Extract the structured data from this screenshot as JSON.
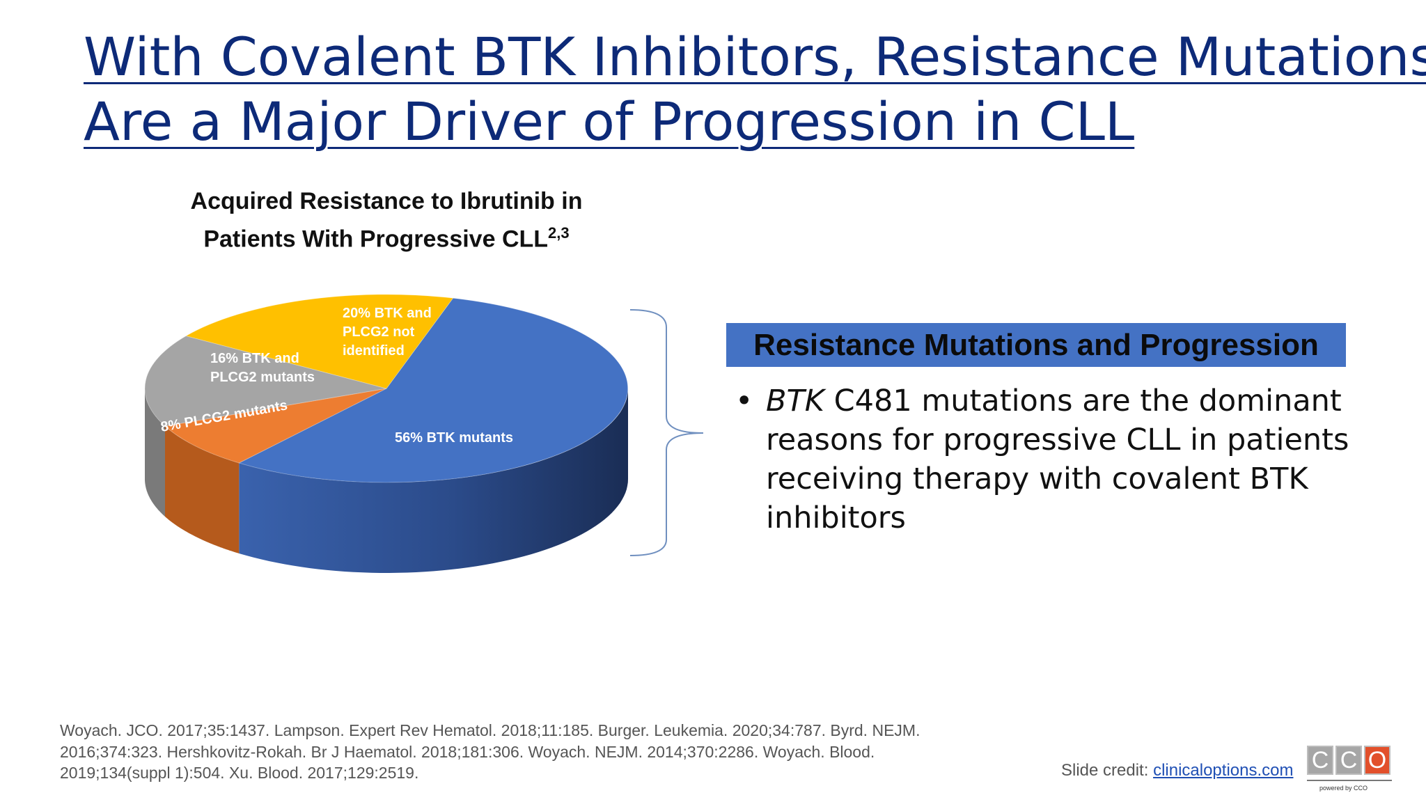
{
  "slide": {
    "title_line1": "With Covalent BTK Inhibitors, Resistance Mutations",
    "title_line2": "Are a Major Driver of Progression in CLL"
  },
  "chart_data": {
    "type": "pie",
    "title_line1": "Acquired Resistance to Ibrutinib in",
    "title_line2": "Patients With Progressive CLL",
    "title_superscript": "2,3",
    "slices": [
      {
        "label": "56% BTK mutants",
        "value": 56,
        "color": "#4472c4",
        "side_color": "#2d4f91"
      },
      {
        "label": "8% PLCG2 mutants",
        "value": 8,
        "color": "#ed7d31",
        "side_color": "#b55a1c"
      },
      {
        "label_lines": [
          "16% BTK and",
          "PLCG2 mutants"
        ],
        "value": 16,
        "color": "#a5a5a5",
        "side_color": "#7a7a7a"
      },
      {
        "label_lines": [
          "20% BTK and",
          "PLCG2 not",
          "identified"
        ],
        "value": 20,
        "color": "#ffc000",
        "side_color": "#c79500"
      }
    ]
  },
  "panel": {
    "heading": "Resistance Mutations and Progression",
    "bullet_italic": "BTK",
    "bullet_text": " C481 mutations are the dominant reasons for progressive CLL in patients receiving therapy with covalent BTK inhibitors",
    "bullet_symbol": "•"
  },
  "footer": {
    "references": "Woyach. JCO. 2017;35:1437. Lampson. Expert Rev Hematol. 2018;11:185. Burger. Leukemia. 2020;34:787. Byrd. NEJM. 2016;374:323. Hershkovitz-Rokah. Br J Haematol. 2018;181:306. Woyach. NEJM. 2014;370:2286. Woyach. Blood. 2019;134(suppl 1):504. Xu. Blood. 2017;129:2519.",
    "credit_prefix": "Slide credit: ",
    "credit_link": "clinicaloptions.com",
    "logo_letters": [
      "C",
      "C",
      "O"
    ],
    "logo_tagline": "powered by CCO"
  }
}
